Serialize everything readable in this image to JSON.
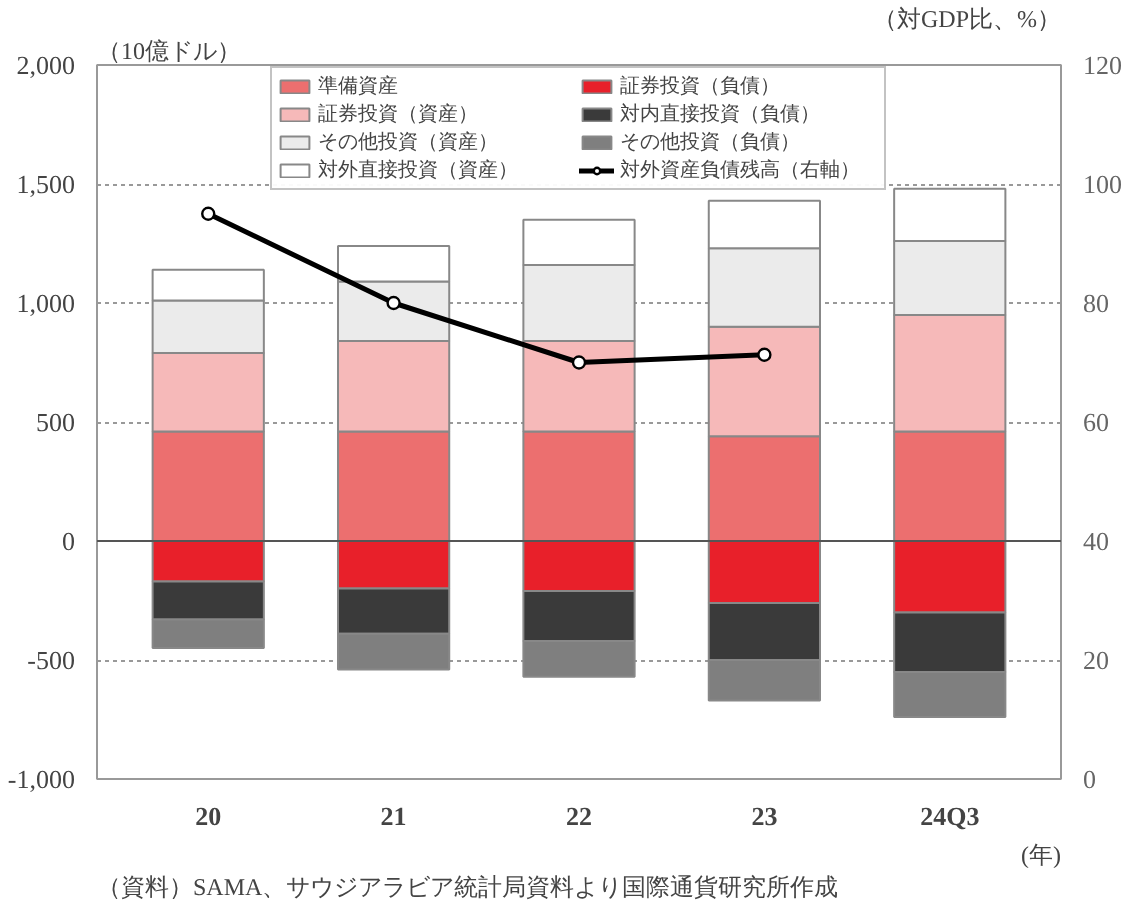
{
  "chart_data": {
    "type": "bar",
    "stacked": true,
    "ylabel": "（10億ドル）",
    "y2label": "（対GDP比、%）",
    "xlabel": "(年)",
    "categories": [
      "20",
      "21",
      "22",
      "23",
      "24Q3"
    ],
    "series": [
      {
        "name": "準備資産",
        "color": "#ec6f6f",
        "values": [
          460,
          460,
          460,
          440,
          460
        ]
      },
      {
        "name": "証券投資（資産）",
        "color": "#f6b9b9",
        "values": [
          330,
          380,
          380,
          460,
          490
        ]
      },
      {
        "name": "その他投資（資産）",
        "color": "#ebebeb",
        "values": [
          220,
          250,
          320,
          330,
          310
        ]
      },
      {
        "name": "対外直接投資（資産）",
        "color": "#ffffff",
        "values": [
          130,
          150,
          190,
          200,
          220
        ]
      },
      {
        "name": "証券投資（負債）",
        "color": "#e8202a",
        "values": [
          -170,
          -200,
          -210,
          -260,
          -300
        ]
      },
      {
        "name": "対内直接投資（負債）",
        "color": "#3a3a3a",
        "values": [
          -160,
          -190,
          -210,
          -240,
          -250
        ]
      },
      {
        "name": "その他投資（負債）",
        "color": "#7f7f7f",
        "values": [
          -120,
          -150,
          -150,
          -170,
          -190
        ]
      },
      {
        "name": "対外資産負債残高（右軸）",
        "type": "line",
        "axis": "y2",
        "color": "#000000",
        "marker": "circle",
        "values": [
          95,
          80,
          70,
          71.3,
          null
        ]
      }
    ],
    "ylim": [
      -1000,
      2000
    ],
    "yticks": [
      {
        "value": -1000,
        "label": "-1,000"
      },
      {
        "value": -500,
        "label": "-500"
      },
      0,
      500,
      {
        "value": 1000,
        "label": "1,000"
      },
      {
        "value": 1500,
        "label": "1,500"
      },
      {
        "value": 2000,
        "label": "2,000"
      }
    ],
    "y2lim": [
      0,
      120
    ],
    "y2ticks": [
      0,
      20,
      40,
      60,
      80,
      100,
      120
    ],
    "grid": "y",
    "legend": "top",
    "annotations": [
      "（資料）SAMA、サウジアラビア統計局資料より国際通貨研究所作成"
    ]
  }
}
